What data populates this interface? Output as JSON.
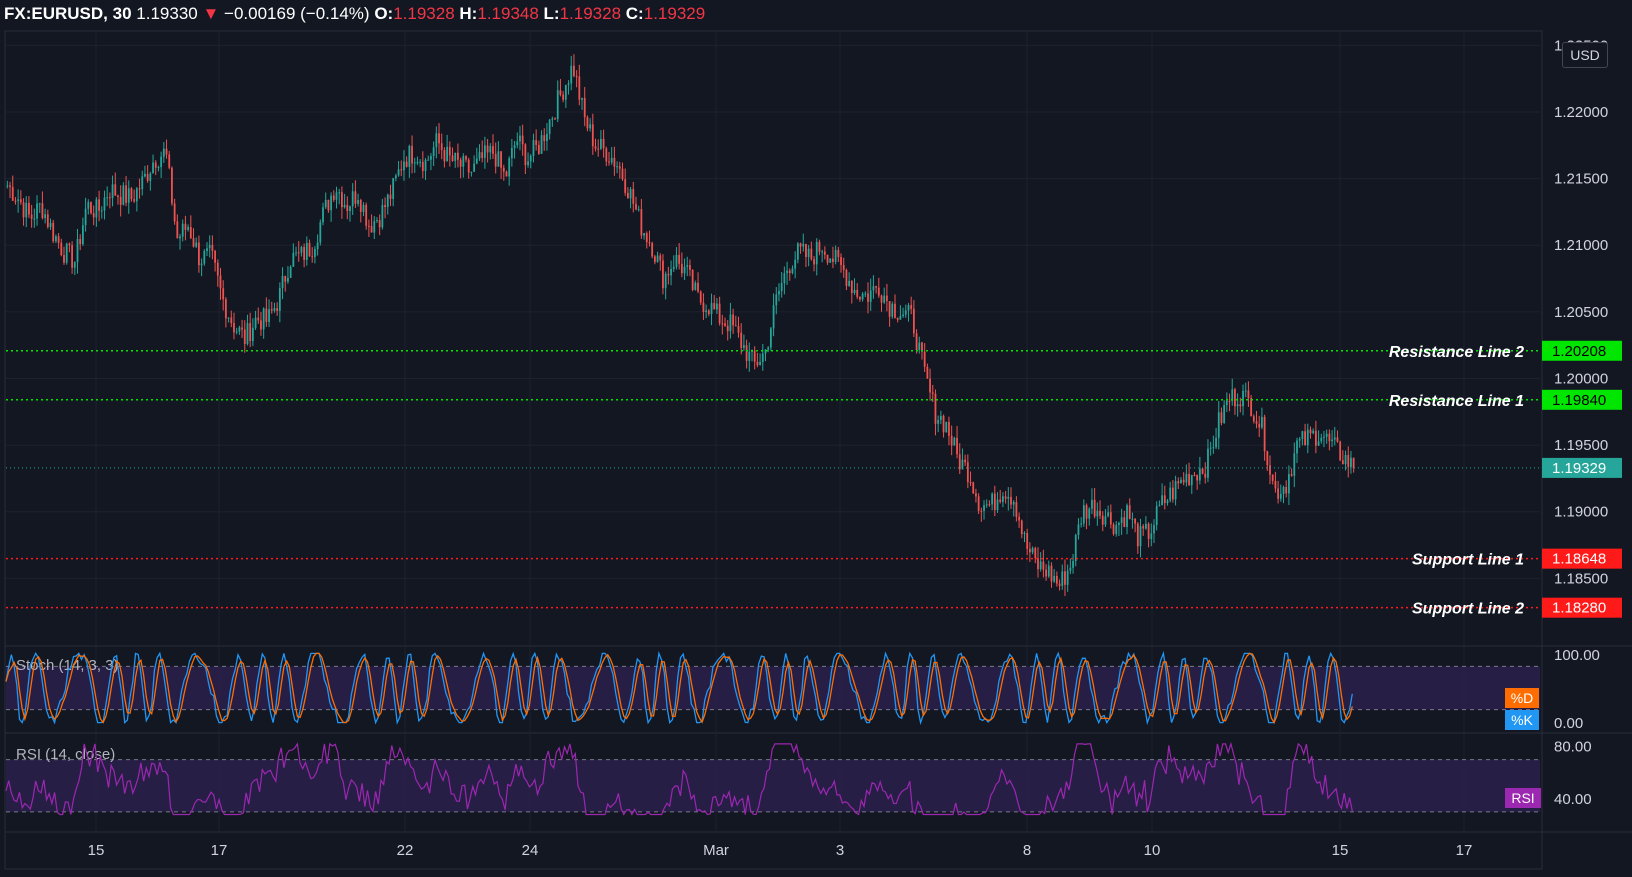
{
  "header": {
    "symbol": "FX:EURUSD",
    "interval": "30",
    "last": "1.19330",
    "change_arrow": "▼",
    "change": "−0.00169 (−0.14%)",
    "o_label": "O:",
    "o": "1.19328",
    "h_label": "H:",
    "h": "1.19348",
    "l_label": "L:",
    "l": "1.19328",
    "c_label": "C:",
    "c": "1.19329"
  },
  "currency": "USD",
  "colors": {
    "background": "#131722",
    "grid": "#1e222d",
    "up": "#26a69a",
    "down": "#ef5350",
    "resistance": "#00e600",
    "support": "#ff1a1a",
    "last_price": "#26a69a",
    "stoch_k": "#2196f3",
    "stoch_d": "#ff6d00",
    "rsi": "#9c27b0",
    "band": "#2a1f4a"
  },
  "chart_data": [
    {
      "type": "candlestick",
      "ylim": [
        1.18,
        1.226
      ],
      "y_ticks": [
        "1.22500",
        "1.22000",
        "1.21500",
        "1.21000",
        "1.20500",
        "1.20000",
        "1.19500",
        "1.19000",
        "1.18500"
      ],
      "x_ticks": [
        "15",
        "17",
        "22",
        "24",
        "Mar",
        "3",
        "8",
        "10",
        "15",
        "17"
      ],
      "price_path": [
        1.2145,
        1.2135,
        1.212,
        1.213,
        1.211,
        1.2095,
        1.2088,
        1.213,
        1.2125,
        1.2142,
        1.2138,
        1.2135,
        1.2148,
        1.2165,
        1.217,
        1.2105,
        1.2115,
        1.209,
        1.2092,
        1.206,
        1.204,
        1.203,
        1.2045,
        1.2043,
        1.206,
        1.209,
        1.2092,
        1.21,
        1.2125,
        1.2145,
        1.213,
        1.214,
        1.2115,
        1.2123,
        1.214,
        1.2165,
        1.217,
        1.2162,
        1.2178,
        1.2165,
        1.216,
        1.2155,
        1.2165,
        1.217,
        1.215,
        1.218,
        1.2165,
        1.2175,
        1.2195,
        1.2215,
        1.2235,
        1.2195,
        1.2175,
        1.217,
        1.216,
        1.214,
        1.2115,
        1.21,
        1.2075,
        1.209,
        1.208,
        1.206,
        1.2055,
        1.2045,
        1.204,
        1.2025,
        1.201,
        1.202,
        1.206,
        1.2085,
        1.2095,
        1.209,
        1.21,
        1.209,
        1.208,
        1.2065,
        1.2062,
        1.207,
        1.2055,
        1.205,
        1.2045,
        1.2005,
        1.1975,
        1.1965,
        1.194,
        1.193,
        1.1905,
        1.1905,
        1.1918,
        1.191,
        1.1875,
        1.186,
        1.1855,
        1.1845,
        1.186,
        1.19,
        1.1905,
        1.1898,
        1.189,
        1.19,
        1.188,
        1.1885,
        1.1905,
        1.1915,
        1.1925,
        1.193,
        1.1935,
        1.1965,
        1.1985,
        1.1988,
        1.198,
        1.196,
        1.1915,
        1.192,
        1.195,
        1.1955,
        1.196,
        1.195,
        1.1942,
        1.1933
      ],
      "horizontal_lines": [
        {
          "label": "Resistance Line 2",
          "value": "1.20208"
        },
        {
          "label": "Resistance Line 1",
          "value": "1.19840"
        },
        {
          "label": "Support Line 1",
          "value": "1.18648"
        },
        {
          "label": "Support Line 2",
          "value": "1.18280"
        }
      ],
      "last_price": "1.19329"
    },
    {
      "type": "line",
      "title": "Stoch (14, 3, 3)",
      "ylim": [
        0,
        100
      ],
      "y_ticks": [
        "100.00",
        "0.00"
      ],
      "bands": [
        80,
        20
      ],
      "series": [
        {
          "name": "%K"
        },
        {
          "name": "%D"
        }
      ]
    },
    {
      "type": "line",
      "title": "RSI (14, close)",
      "ylim": [
        20,
        85
      ],
      "y_ticks": [
        "80.00",
        "40.00"
      ],
      "bands": [
        70,
        30
      ],
      "series": [
        {
          "name": "RSI"
        }
      ]
    }
  ]
}
